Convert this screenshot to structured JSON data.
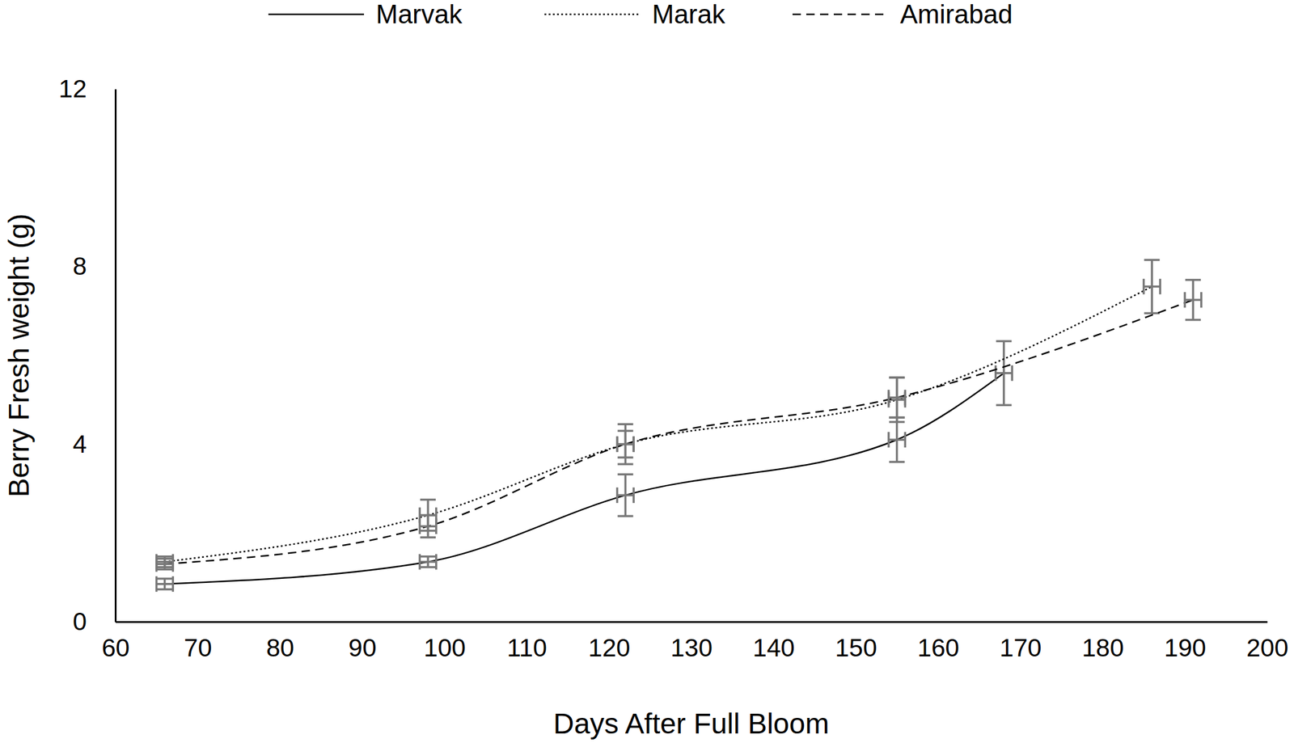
{
  "chart_data": {
    "type": "line",
    "x_label": "Days After Full Bloom",
    "y_label": "Berry Fresh weight (g)",
    "xlim": [
      60,
      200
    ],
    "xticks": [
      60,
      70,
      80,
      90,
      100,
      110,
      120,
      130,
      140,
      150,
      160,
      170,
      180,
      190,
      200
    ],
    "ylim": [
      0,
      12
    ],
    "yticks": [
      0,
      4,
      8,
      12
    ],
    "grid": false,
    "legend": "top",
    "series": [
      {
        "name": "Marvak",
        "color": "#000000",
        "line_style": "solid",
        "x": [
          66,
          98,
          122,
          155,
          168
        ],
        "values": [
          0.85,
          1.35,
          2.85,
          4.1,
          5.6
        ],
        "errors": [
          0.12,
          0.12,
          0.47,
          0.5,
          0.72
        ],
        "x_errors": [
          1,
          1,
          1,
          1,
          1
        ]
      },
      {
        "name": "Marak",
        "color": "#000000",
        "line_style": "dotted",
        "x": [
          66,
          98,
          122,
          155,
          186
        ],
        "values": [
          1.35,
          2.4,
          4.0,
          5.0,
          7.55
        ],
        "errors": [
          0.12,
          0.35,
          0.3,
          0.5,
          0.6
        ],
        "x_errors": [
          1,
          1,
          1,
          1,
          1
        ]
      },
      {
        "name": "Amirabad",
        "color": "#000000",
        "line_style": "dashed",
        "x": [
          66,
          98,
          122,
          155,
          191
        ],
        "values": [
          1.3,
          2.15,
          4.0,
          5.05,
          7.25
        ],
        "errors": [
          0.12,
          0.25,
          0.45,
          0.45,
          0.45
        ],
        "x_errors": [
          1,
          1,
          1,
          1,
          1
        ]
      }
    ]
  }
}
